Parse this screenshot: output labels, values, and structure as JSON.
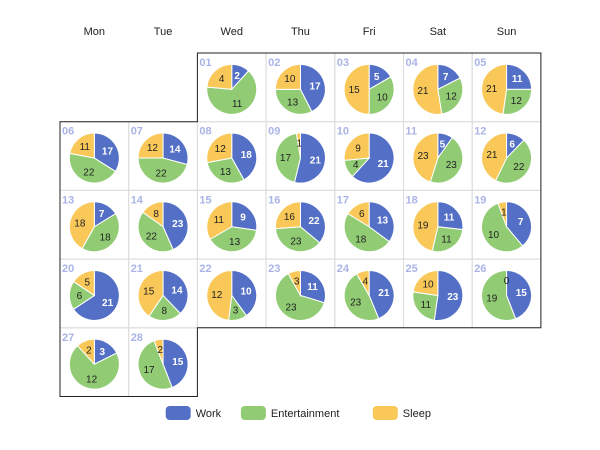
{
  "chart_data": {
    "type": "pie",
    "title": "",
    "layout": "calendar",
    "weekdays": [
      "Mon",
      "Tue",
      "Wed",
      "Thu",
      "Fri",
      "Sat",
      "Sun"
    ],
    "series": [
      {
        "name": "Work",
        "color": "#5470c6"
      },
      {
        "name": "Entertainment",
        "color": "#91cc75"
      },
      {
        "name": "Sleep",
        "color": "#fac858"
      }
    ],
    "days": [
      {
        "day": "01",
        "weekday": "Wed",
        "values": [
          2,
          11,
          4
        ]
      },
      {
        "day": "02",
        "weekday": "Thu",
        "values": [
          17,
          13,
          10
        ]
      },
      {
        "day": "03",
        "weekday": "Fri",
        "values": [
          5,
          10,
          15
        ]
      },
      {
        "day": "04",
        "weekday": "Sat",
        "values": [
          7,
          12,
          21
        ]
      },
      {
        "day": "05",
        "weekday": "Sun",
        "values": [
          11,
          12,
          21
        ]
      },
      {
        "day": "06",
        "weekday": "Mon",
        "values": [
          17,
          22,
          11
        ]
      },
      {
        "day": "07",
        "weekday": "Tue",
        "values": [
          14,
          22,
          12
        ]
      },
      {
        "day": "08",
        "weekday": "Wed",
        "values": [
          18,
          13,
          12
        ]
      },
      {
        "day": "09",
        "weekday": "Thu",
        "values": [
          21,
          17,
          1
        ]
      },
      {
        "day": "10",
        "weekday": "Fri",
        "values": [
          21,
          4,
          9
        ]
      },
      {
        "day": "11",
        "weekday": "Sat",
        "values": [
          5,
          23,
          23
        ]
      },
      {
        "day": "12",
        "weekday": "Sun",
        "values": [
          6,
          22,
          21
        ]
      },
      {
        "day": "13",
        "weekday": "Mon",
        "values": [
          7,
          18,
          18
        ]
      },
      {
        "day": "14",
        "weekday": "Tue",
        "values": [
          23,
          22,
          8
        ]
      },
      {
        "day": "15",
        "weekday": "Wed",
        "values": [
          9,
          13,
          11
        ]
      },
      {
        "day": "16",
        "weekday": "Thu",
        "values": [
          22,
          23,
          16
        ]
      },
      {
        "day": "17",
        "weekday": "Fri",
        "values": [
          13,
          18,
          6
        ]
      },
      {
        "day": "18",
        "weekday": "Sat",
        "values": [
          11,
          11,
          19
        ]
      },
      {
        "day": "19",
        "weekday": "Sun",
        "values": [
          7,
          10,
          1
        ]
      },
      {
        "day": "20",
        "weekday": "Mon",
        "values": [
          21,
          6,
          5
        ]
      },
      {
        "day": "21",
        "weekday": "Tue",
        "values": [
          14,
          8,
          15
        ]
      },
      {
        "day": "22",
        "weekday": "Wed",
        "values": [
          10,
          3,
          12
        ]
      },
      {
        "day": "23",
        "weekday": "Thu",
        "values": [
          11,
          23,
          3
        ]
      },
      {
        "day": "24",
        "weekday": "Fri",
        "values": [
          21,
          23,
          4
        ]
      },
      {
        "day": "25",
        "weekday": "Sat",
        "values": [
          23,
          11,
          10
        ]
      },
      {
        "day": "26",
        "weekday": "Sun",
        "values": [
          15,
          19,
          0
        ]
      },
      {
        "day": "27",
        "weekday": "Mon",
        "values": [
          3,
          12,
          2
        ]
      },
      {
        "day": "28",
        "weekday": "Tue",
        "values": [
          15,
          17,
          2
        ]
      }
    ],
    "legend": {
      "position": "bottom"
    },
    "grid": true
  }
}
